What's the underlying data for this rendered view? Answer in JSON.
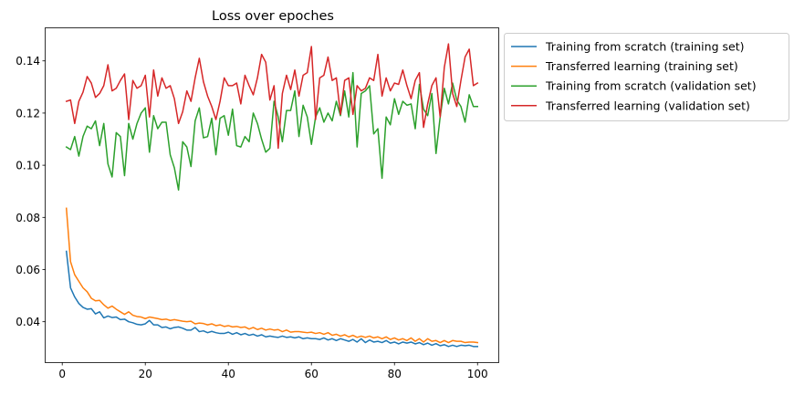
{
  "chart_data": {
    "type": "line",
    "title": "Loss over epoches",
    "xlabel": "",
    "ylabel": "",
    "xlim": [
      -4,
      105
    ],
    "ylim": [
      0.0245,
      0.1525
    ],
    "x_ticks": [
      0,
      20,
      40,
      60,
      80,
      100
    ],
    "x_tick_labels": [
      "0",
      "20",
      "40",
      "60",
      "80",
      "100"
    ],
    "y_ticks": [
      0.04,
      0.06,
      0.08,
      0.1,
      0.12,
      0.14
    ],
    "y_tick_labels": [
      "0.04",
      "0.06",
      "0.08",
      "0.10",
      "0.12",
      "0.14"
    ],
    "grid": false,
    "legend_position": "outside upper right",
    "x": [
      1,
      2,
      3,
      4,
      5,
      6,
      7,
      8,
      9,
      10,
      11,
      12,
      13,
      14,
      15,
      16,
      17,
      18,
      19,
      20,
      21,
      22,
      23,
      24,
      25,
      26,
      27,
      28,
      29,
      30,
      31,
      32,
      33,
      34,
      35,
      36,
      37,
      38,
      39,
      40,
      41,
      42,
      43,
      44,
      45,
      46,
      47,
      48,
      49,
      50,
      51,
      52,
      53,
      54,
      55,
      56,
      57,
      58,
      59,
      60,
      61,
      62,
      63,
      64,
      65,
      66,
      67,
      68,
      69,
      70,
      71,
      72,
      73,
      74,
      75,
      76,
      77,
      78,
      79,
      80,
      81,
      82,
      83,
      84,
      85,
      86,
      87,
      88,
      89,
      90,
      91,
      92,
      93,
      94,
      95,
      96,
      97,
      98,
      99,
      100
    ],
    "series": [
      {
        "name": "Training from scratch (training set)",
        "color": "#1f77b4",
        "values": [
          0.067,
          0.053,
          0.0495,
          0.047,
          0.0455,
          0.0448,
          0.045,
          0.043,
          0.0438,
          0.0415,
          0.0422,
          0.0416,
          0.0418,
          0.0408,
          0.041,
          0.04,
          0.0396,
          0.039,
          0.0388,
          0.0392,
          0.0405,
          0.0388,
          0.0388,
          0.0378,
          0.038,
          0.0373,
          0.0378,
          0.038,
          0.0375,
          0.0368,
          0.0368,
          0.0378,
          0.0362,
          0.0365,
          0.0358,
          0.0363,
          0.0358,
          0.0355,
          0.0355,
          0.036,
          0.0352,
          0.0358,
          0.035,
          0.0355,
          0.0348,
          0.0352,
          0.0345,
          0.035,
          0.0342,
          0.0345,
          0.0342,
          0.034,
          0.0345,
          0.034,
          0.0342,
          0.0338,
          0.0342,
          0.0335,
          0.0338,
          0.0335,
          0.0335,
          0.0332,
          0.0338,
          0.033,
          0.0335,
          0.0328,
          0.0335,
          0.033,
          0.0325,
          0.0332,
          0.0322,
          0.0335,
          0.032,
          0.033,
          0.0322,
          0.0325,
          0.032,
          0.0328,
          0.0318,
          0.0322,
          0.0315,
          0.0322,
          0.0318,
          0.0322,
          0.0315,
          0.032,
          0.0312,
          0.0318,
          0.031,
          0.0316,
          0.0308,
          0.0312,
          0.0305,
          0.031,
          0.0305,
          0.031,
          0.0308,
          0.031,
          0.0305,
          0.0305
        ]
      },
      {
        "name": "Transferred learning (training set)",
        "color": "#ff7f0e",
        "values": [
          0.0835,
          0.063,
          0.058,
          0.0555,
          0.053,
          0.0515,
          0.049,
          0.048,
          0.0482,
          0.0465,
          0.0452,
          0.046,
          0.0448,
          0.0438,
          0.0428,
          0.0438,
          0.0425,
          0.042,
          0.0418,
          0.0412,
          0.0418,
          0.0415,
          0.0412,
          0.0408,
          0.041,
          0.0405,
          0.0408,
          0.0405,
          0.0402,
          0.04,
          0.0402,
          0.0392,
          0.0395,
          0.0393,
          0.0388,
          0.0392,
          0.0385,
          0.0388,
          0.0382,
          0.0385,
          0.038,
          0.0382,
          0.0378,
          0.038,
          0.0372,
          0.0378,
          0.037,
          0.0375,
          0.0368,
          0.0372,
          0.0368,
          0.037,
          0.0362,
          0.0368,
          0.036,
          0.0362,
          0.0362,
          0.036,
          0.0358,
          0.036,
          0.0355,
          0.0358,
          0.0352,
          0.0358,
          0.0348,
          0.0352,
          0.0345,
          0.035,
          0.0342,
          0.0348,
          0.034,
          0.0345,
          0.034,
          0.0345,
          0.0338,
          0.0342,
          0.0335,
          0.0342,
          0.0332,
          0.0338,
          0.033,
          0.0335,
          0.0328,
          0.0338,
          0.0325,
          0.0335,
          0.0322,
          0.0335,
          0.0325,
          0.0328,
          0.032,
          0.0328,
          0.032,
          0.0328,
          0.0325,
          0.0325,
          0.032,
          0.0322,
          0.0322,
          0.032
        ]
      },
      {
        "name": "Training from scratch (validation set)",
        "color": "#2ca02c",
        "values": [
          0.107,
          0.106,
          0.111,
          0.1035,
          0.111,
          0.115,
          0.114,
          0.117,
          0.1075,
          0.116,
          0.1005,
          0.0955,
          0.1125,
          0.111,
          0.096,
          0.116,
          0.11,
          0.116,
          0.12,
          0.122,
          0.105,
          0.119,
          0.114,
          0.1165,
          0.1165,
          0.104,
          0.099,
          0.0905,
          0.109,
          0.107,
          0.0995,
          0.117,
          0.122,
          0.1105,
          0.111,
          0.118,
          0.104,
          0.118,
          0.119,
          0.1115,
          0.1215,
          0.1075,
          0.107,
          0.111,
          0.109,
          0.12,
          0.116,
          0.11,
          0.105,
          0.1065,
          0.1245,
          0.1185,
          0.109,
          0.121,
          0.121,
          0.1285,
          0.111,
          0.123,
          0.1185,
          0.108,
          0.1185,
          0.122,
          0.1165,
          0.12,
          0.117,
          0.1245,
          0.119,
          0.1285,
          0.1185,
          0.1355,
          0.107,
          0.1275,
          0.1285,
          0.1305,
          0.112,
          0.114,
          0.095,
          0.1185,
          0.1155,
          0.1255,
          0.1195,
          0.1245,
          0.123,
          0.1235,
          0.114,
          0.131,
          0.1215,
          0.119,
          0.1275,
          0.1045,
          0.1185,
          0.1295,
          0.1235,
          0.1315,
          0.125,
          0.1225,
          0.1165,
          0.127,
          0.1225,
          0.1225
        ]
      },
      {
        "name": "Transferred learning (validation set)",
        "color": "#d62728",
        "values": [
          0.1245,
          0.125,
          0.116,
          0.1245,
          0.128,
          0.134,
          0.1315,
          0.126,
          0.1275,
          0.1305,
          0.1385,
          0.1285,
          0.1295,
          0.1325,
          0.135,
          0.1175,
          0.1325,
          0.1295,
          0.1305,
          0.1345,
          0.1185,
          0.1365,
          0.1265,
          0.1335,
          0.1295,
          0.1305,
          0.1255,
          0.116,
          0.1205,
          0.1285,
          0.1245,
          0.1335,
          0.141,
          0.132,
          0.1265,
          0.1225,
          0.1175,
          0.1245,
          0.1335,
          0.1305,
          0.1305,
          0.1315,
          0.1235,
          0.1345,
          0.1305,
          0.127,
          0.1335,
          0.1425,
          0.1395,
          0.125,
          0.1305,
          0.1065,
          0.1275,
          0.1345,
          0.129,
          0.1365,
          0.1265,
          0.1345,
          0.1355,
          0.1455,
          0.1175,
          0.1335,
          0.1345,
          0.1415,
          0.1325,
          0.1335,
          0.1195,
          0.1325,
          0.1335,
          0.1195,
          0.1305,
          0.1285,
          0.1295,
          0.1335,
          0.1325,
          0.1425,
          0.1265,
          0.1335,
          0.1285,
          0.1315,
          0.131,
          0.1365,
          0.1305,
          0.1255,
          0.1325,
          0.1355,
          0.1145,
          0.1235,
          0.1305,
          0.1335,
          0.1185,
          0.1375,
          0.1465,
          0.1275,
          0.1225,
          0.1325,
          0.1415,
          0.1445,
          0.1305,
          0.1315
        ]
      }
    ]
  }
}
